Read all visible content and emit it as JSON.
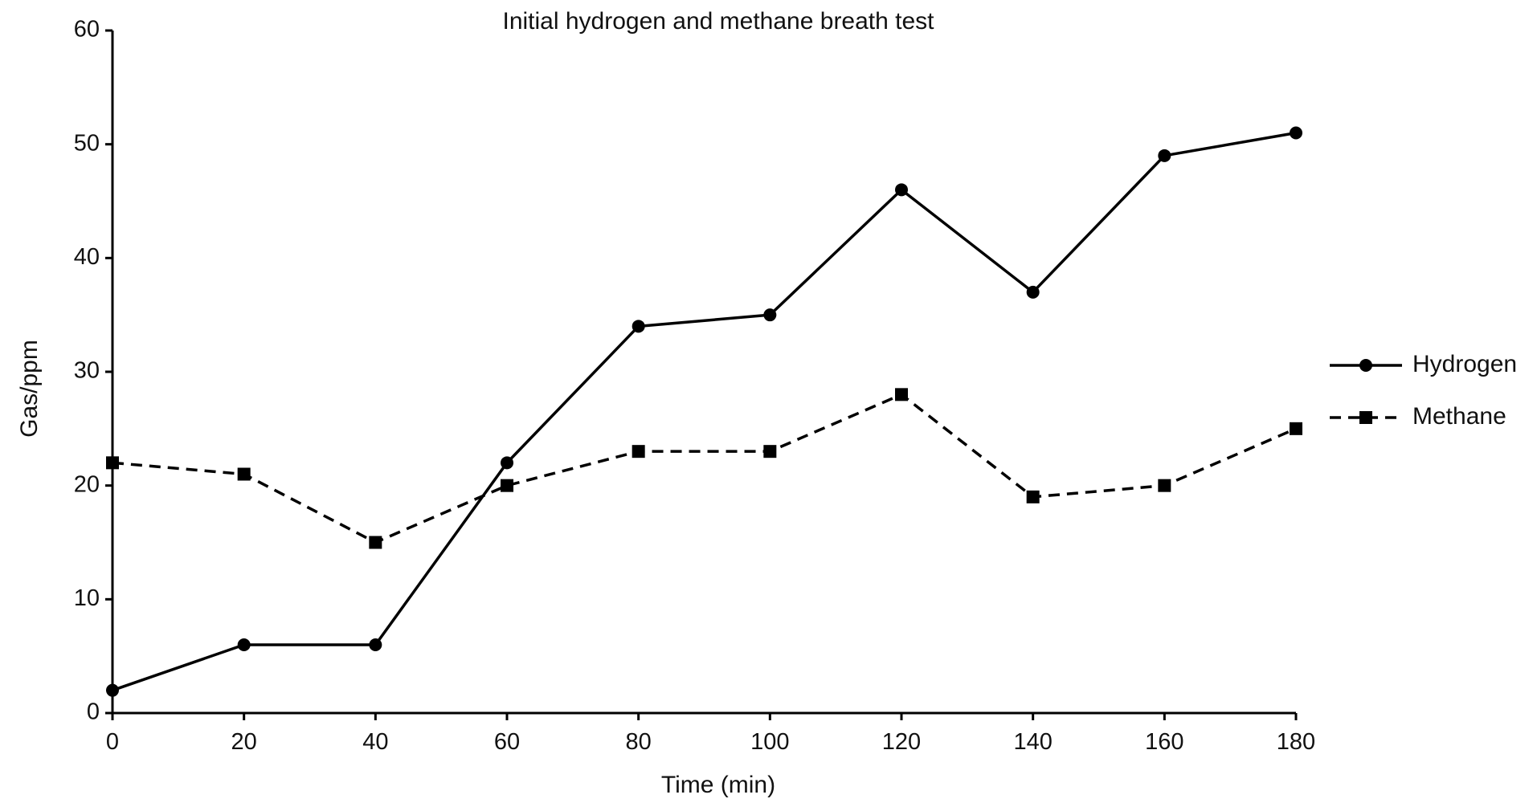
{
  "chart_data": {
    "type": "line",
    "title": "Initial hydrogen and methane breath test",
    "xlabel": "Time (min)",
    "ylabel": "Gas/ppm",
    "x": [
      0,
      20,
      40,
      60,
      80,
      100,
      120,
      140,
      160,
      180
    ],
    "xlim": [
      0,
      180
    ],
    "ylim": [
      0,
      60
    ],
    "xticks": [
      "0",
      "20",
      "40",
      "60",
      "80",
      "100",
      "120",
      "140",
      "160",
      "180"
    ],
    "yticks": [
      "0",
      "10",
      "20",
      "30",
      "40",
      "50",
      "60"
    ],
    "grid": false,
    "legend_position": "right",
    "series": [
      {
        "name": "Hydrogen",
        "values": [
          2,
          6,
          6,
          22,
          34,
          35,
          46,
          37,
          49,
          51
        ],
        "marker": "circle",
        "line_style": "solid",
        "color": "#000000"
      },
      {
        "name": "Methane",
        "values": [
          22,
          21,
          15,
          20,
          23,
          23,
          28,
          19,
          20,
          25
        ],
        "marker": "square",
        "line_style": "dashed",
        "color": "#000000"
      }
    ]
  }
}
